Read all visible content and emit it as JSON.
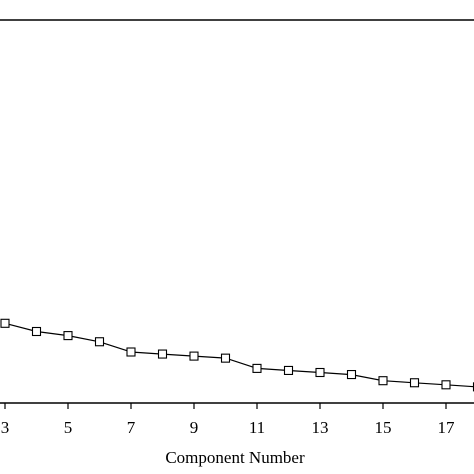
{
  "chart_data": {
    "type": "line",
    "title": "",
    "xlabel": "Component Number",
    "ylabel": "",
    "xticks": [
      3,
      5,
      7,
      9,
      11,
      13,
      15,
      17
    ],
    "series": [
      {
        "x": [
          3,
          4,
          5,
          6,
          7,
          8,
          9,
          10,
          11,
          12,
          13,
          14,
          15,
          16,
          17,
          18
        ],
        "y": [
          0.7,
          0.66,
          0.64,
          0.61,
          0.56,
          0.55,
          0.54,
          0.53,
          0.48,
          0.47,
          0.46,
          0.45,
          0.42,
          0.41,
          0.4,
          0.39
        ]
      }
    ],
    "marker": "open-square",
    "grid": false
  }
}
